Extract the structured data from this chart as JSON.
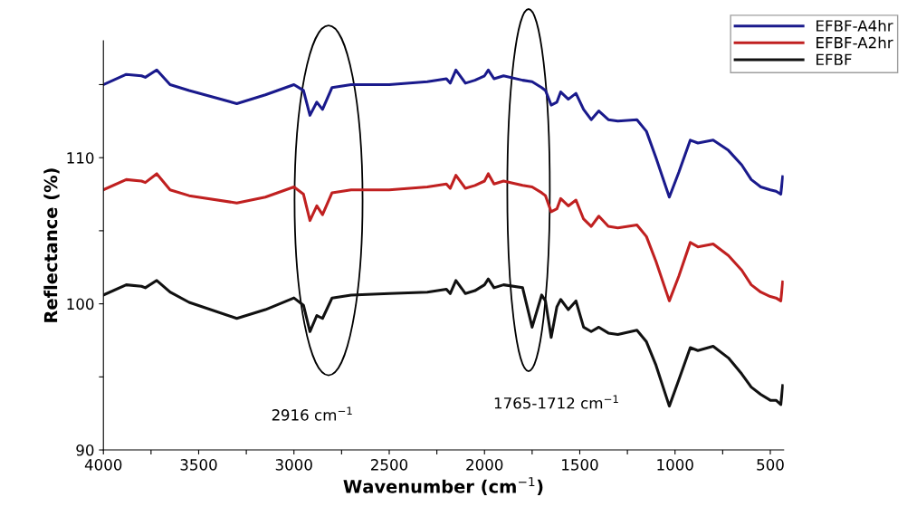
{
  "chart_data": {
    "type": "line",
    "xlabel": "Wavenumber (cm$^{−1}$)",
    "ylabel": "Reflectance (%)",
    "x": [
      4000,
      3880,
      3800,
      3780,
      3720,
      3650,
      3550,
      3300,
      3150,
      3000,
      2950,
      2916,
      2880,
      2850,
      2800,
      2700,
      2500,
      2300,
      2200,
      2180,
      2150,
      2100,
      2050,
      2000,
      1980,
      1950,
      1900,
      1800,
      1750,
      1700,
      1680,
      1650,
      1620,
      1600,
      1560,
      1520,
      1480,
      1440,
      1400,
      1350,
      1300,
      1200,
      1150,
      1100,
      1030,
      980,
      920,
      880,
      800,
      720,
      650,
      600,
      550,
      500,
      470,
      445,
      435
    ],
    "series": [
      {
        "name": "EFBF-A4hr",
        "color": "#1a1a8c",
        "values": [
          115.0,
          115.7,
          115.6,
          115.5,
          116.0,
          115.0,
          114.6,
          113.7,
          114.3,
          115.0,
          114.6,
          112.9,
          113.8,
          113.3,
          114.8,
          115.0,
          115.0,
          115.2,
          115.4,
          115.1,
          116.0,
          115.1,
          115.3,
          115.6,
          116.0,
          115.4,
          115.6,
          115.3,
          115.2,
          114.8,
          114.6,
          113.6,
          113.8,
          114.5,
          114.0,
          114.4,
          113.3,
          112.6,
          113.2,
          112.6,
          112.5,
          112.6,
          111.8,
          110.0,
          107.3,
          109.0,
          111.2,
          111.0,
          111.2,
          110.5,
          109.5,
          108.5,
          108.0,
          107.8,
          107.7,
          107.5,
          108.7
        ]
      },
      {
        "name": "EFBF-A2hr",
        "color": "#c02020",
        "values": [
          107.8,
          108.5,
          108.4,
          108.3,
          108.9,
          107.8,
          107.4,
          106.9,
          107.3,
          108.0,
          107.5,
          105.7,
          106.7,
          106.1,
          107.6,
          107.8,
          107.8,
          108.0,
          108.2,
          107.9,
          108.8,
          107.9,
          108.1,
          108.4,
          108.9,
          108.2,
          108.4,
          108.1,
          108.0,
          107.6,
          107.4,
          106.3,
          106.5,
          107.2,
          106.7,
          107.1,
          105.8,
          105.3,
          106.0,
          105.3,
          105.2,
          105.4,
          104.6,
          102.9,
          100.2,
          101.9,
          104.2,
          103.9,
          104.1,
          103.3,
          102.3,
          101.3,
          100.8,
          100.5,
          100.4,
          100.2,
          101.5
        ]
      },
      {
        "name": "EFBF",
        "color": "#111111",
        "values": [
          100.6,
          101.3,
          101.2,
          101.1,
          101.6,
          100.8,
          100.1,
          99.0,
          99.6,
          100.4,
          99.9,
          98.1,
          99.2,
          99.0,
          100.4,
          100.6,
          100.7,
          100.8,
          101.0,
          100.7,
          101.6,
          100.7,
          100.9,
          101.3,
          101.7,
          101.1,
          101.3,
          101.1,
          98.4,
          100.6,
          100.2,
          97.7,
          99.8,
          100.3,
          99.6,
          100.2,
          98.4,
          98.1,
          98.4,
          98.0,
          97.9,
          98.2,
          97.4,
          95.8,
          93.0,
          94.8,
          97.0,
          96.8,
          97.1,
          96.3,
          95.2,
          94.3,
          93.8,
          93.4,
          93.4,
          93.1,
          94.4
        ]
      }
    ],
    "xlim": [
      4000,
      430
    ],
    "ylim": [
      90,
      118
    ],
    "xticks": [
      4000,
      {
        "value": 3750,
        "label": null
      },
      3500,
      {
        "value": 3250,
        "label": null
      },
      3000,
      {
        "value": 2750,
        "label": null
      },
      2500,
      {
        "value": 2250,
        "label": null
      },
      2000,
      {
        "value": 1750,
        "label": null
      },
      1500,
      {
        "value": 1250,
        "label": null
      },
      1000,
      {
        "value": 750,
        "label": null
      },
      500
    ],
    "yticks": [
      90,
      {
        "value": 95,
        "label": null
      },
      100,
      {
        "value": 105,
        "label": null
      },
      110,
      {
        "value": 115,
        "label": null
      }
    ],
    "annotations": [
      "2916 cm$^{−1}$",
      "1765-1712 cm$^{−1}$"
    ],
    "legend": "top right",
    "grid": false,
    "line_style": "solid",
    "marker": "none"
  }
}
